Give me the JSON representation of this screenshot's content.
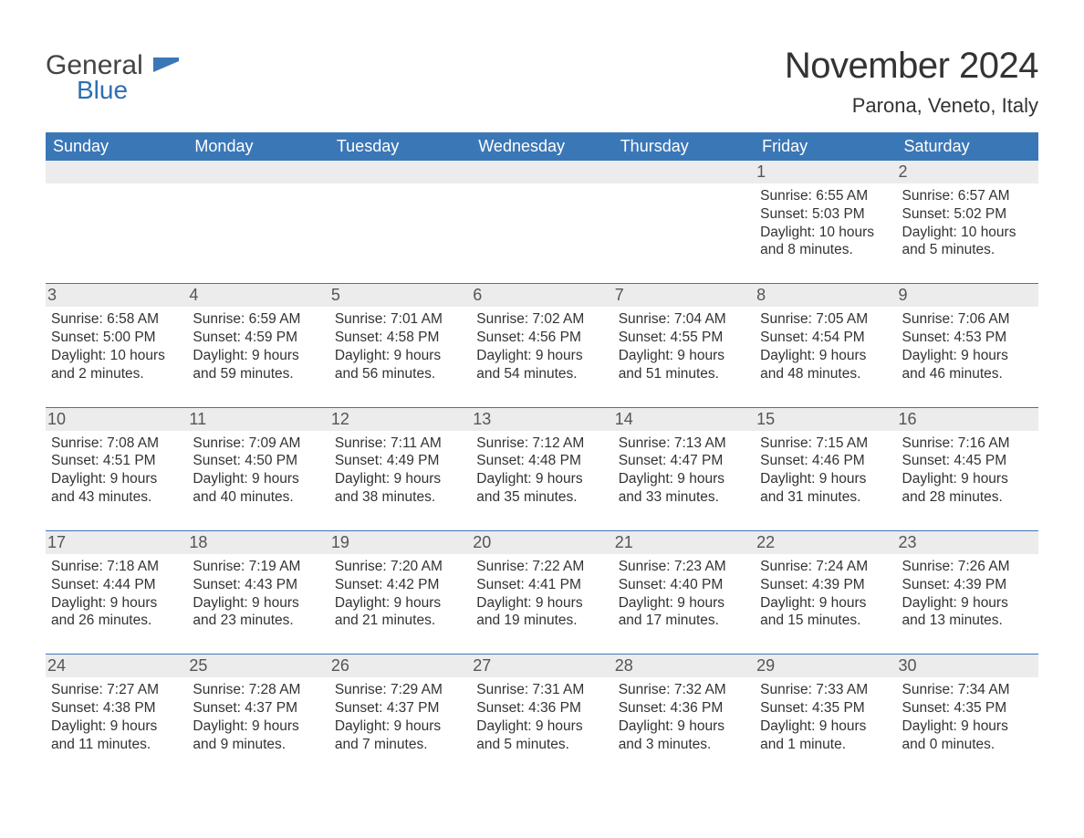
{
  "brand": {
    "general": "General",
    "blue": "Blue"
  },
  "title": "November 2024",
  "location": "Parona, Veneto, Italy",
  "colors": {
    "header_bg": "#3a77b7",
    "header_text": "#ffffff",
    "daynum_bg": "#ececec",
    "daynum_text": "#555555",
    "body_text": "#333333",
    "week_border": "#3a77b7",
    "logo_general": "#444444",
    "logo_blue": "#2e6fb4",
    "page_bg": "#ffffff"
  },
  "font": {
    "family": "Arial",
    "title_size_pt": 30,
    "location_size_pt": 16,
    "header_size_pt": 14,
    "cell_size_pt": 11
  },
  "daysOfWeek": [
    "Sunday",
    "Monday",
    "Tuesday",
    "Wednesday",
    "Thursday",
    "Friday",
    "Saturday"
  ],
  "weeks": [
    [
      null,
      null,
      null,
      null,
      null,
      {
        "n": "1",
        "sunrise": "6:55 AM",
        "sunset": "5:03 PM",
        "daylight": "10 hours and 8 minutes."
      },
      {
        "n": "2",
        "sunrise": "6:57 AM",
        "sunset": "5:02 PM",
        "daylight": "10 hours and 5 minutes."
      }
    ],
    [
      {
        "n": "3",
        "sunrise": "6:58 AM",
        "sunset": "5:00 PM",
        "daylight": "10 hours and 2 minutes."
      },
      {
        "n": "4",
        "sunrise": "6:59 AM",
        "sunset": "4:59 PM",
        "daylight": "9 hours and 59 minutes."
      },
      {
        "n": "5",
        "sunrise": "7:01 AM",
        "sunset": "4:58 PM",
        "daylight": "9 hours and 56 minutes."
      },
      {
        "n": "6",
        "sunrise": "7:02 AM",
        "sunset": "4:56 PM",
        "daylight": "9 hours and 54 minutes."
      },
      {
        "n": "7",
        "sunrise": "7:04 AM",
        "sunset": "4:55 PM",
        "daylight": "9 hours and 51 minutes."
      },
      {
        "n": "8",
        "sunrise": "7:05 AM",
        "sunset": "4:54 PM",
        "daylight": "9 hours and 48 minutes."
      },
      {
        "n": "9",
        "sunrise": "7:06 AM",
        "sunset": "4:53 PM",
        "daylight": "9 hours and 46 minutes."
      }
    ],
    [
      {
        "n": "10",
        "sunrise": "7:08 AM",
        "sunset": "4:51 PM",
        "daylight": "9 hours and 43 minutes."
      },
      {
        "n": "11",
        "sunrise": "7:09 AM",
        "sunset": "4:50 PM",
        "daylight": "9 hours and 40 minutes."
      },
      {
        "n": "12",
        "sunrise": "7:11 AM",
        "sunset": "4:49 PM",
        "daylight": "9 hours and 38 minutes."
      },
      {
        "n": "13",
        "sunrise": "7:12 AM",
        "sunset": "4:48 PM",
        "daylight": "9 hours and 35 minutes."
      },
      {
        "n": "14",
        "sunrise": "7:13 AM",
        "sunset": "4:47 PM",
        "daylight": "9 hours and 33 minutes."
      },
      {
        "n": "15",
        "sunrise": "7:15 AM",
        "sunset": "4:46 PM",
        "daylight": "9 hours and 31 minutes."
      },
      {
        "n": "16",
        "sunrise": "7:16 AM",
        "sunset": "4:45 PM",
        "daylight": "9 hours and 28 minutes."
      }
    ],
    [
      {
        "n": "17",
        "sunrise": "7:18 AM",
        "sunset": "4:44 PM",
        "daylight": "9 hours and 26 minutes."
      },
      {
        "n": "18",
        "sunrise": "7:19 AM",
        "sunset": "4:43 PM",
        "daylight": "9 hours and 23 minutes."
      },
      {
        "n": "19",
        "sunrise": "7:20 AM",
        "sunset": "4:42 PM",
        "daylight": "9 hours and 21 minutes."
      },
      {
        "n": "20",
        "sunrise": "7:22 AM",
        "sunset": "4:41 PM",
        "daylight": "9 hours and 19 minutes."
      },
      {
        "n": "21",
        "sunrise": "7:23 AM",
        "sunset": "4:40 PM",
        "daylight": "9 hours and 17 minutes."
      },
      {
        "n": "22",
        "sunrise": "7:24 AM",
        "sunset": "4:39 PM",
        "daylight": "9 hours and 15 minutes."
      },
      {
        "n": "23",
        "sunrise": "7:26 AM",
        "sunset": "4:39 PM",
        "daylight": "9 hours and 13 minutes."
      }
    ],
    [
      {
        "n": "24",
        "sunrise": "7:27 AM",
        "sunset": "4:38 PM",
        "daylight": "9 hours and 11 minutes."
      },
      {
        "n": "25",
        "sunrise": "7:28 AM",
        "sunset": "4:37 PM",
        "daylight": "9 hours and 9 minutes."
      },
      {
        "n": "26",
        "sunrise": "7:29 AM",
        "sunset": "4:37 PM",
        "daylight": "9 hours and 7 minutes."
      },
      {
        "n": "27",
        "sunrise": "7:31 AM",
        "sunset": "4:36 PM",
        "daylight": "9 hours and 5 minutes."
      },
      {
        "n": "28",
        "sunrise": "7:32 AM",
        "sunset": "4:36 PM",
        "daylight": "9 hours and 3 minutes."
      },
      {
        "n": "29",
        "sunrise": "7:33 AM",
        "sunset": "4:35 PM",
        "daylight": "9 hours and 1 minute."
      },
      {
        "n": "30",
        "sunrise": "7:34 AM",
        "sunset": "4:35 PM",
        "daylight": "9 hours and 0 minutes."
      }
    ]
  ],
  "labels": {
    "sunrise": "Sunrise: ",
    "sunset": "Sunset: ",
    "daylight": "Daylight: "
  }
}
